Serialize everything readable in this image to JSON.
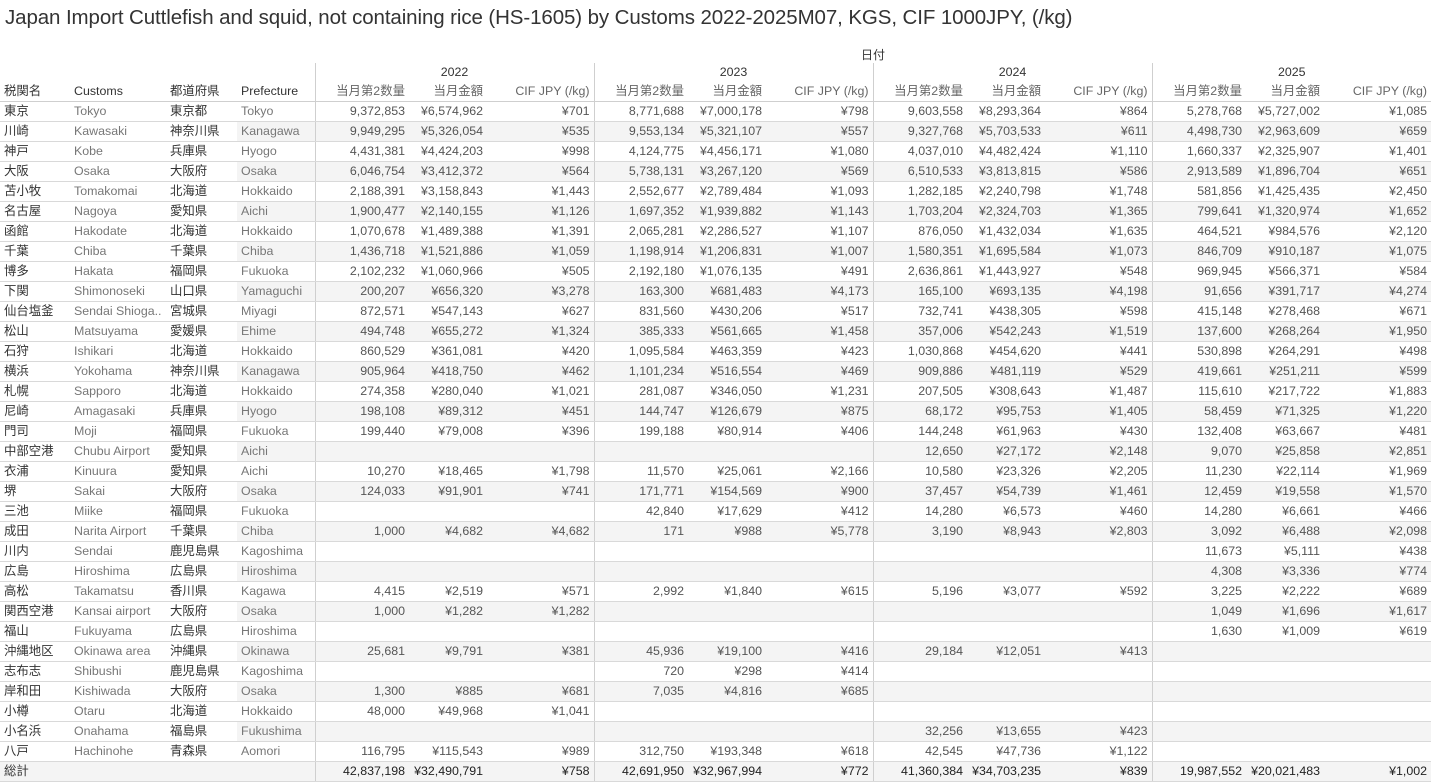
{
  "title": "Japan Import Cuttlefish and squid, not containing rice (HS-1605) by Customs 2022-2025M07, KGS, CIF 1000JPY, (/kg)",
  "date_header": "日付",
  "columns": {
    "customs_ja": "税関名",
    "customs_en": "Customs",
    "pref_ja": "都道府県",
    "pref_en": "Prefecture",
    "measures": [
      "当月第2数量",
      "当月金額",
      "CIF JPY (/kg)"
    ]
  },
  "years": [
    "2022",
    "2023",
    "2024",
    "2025"
  ],
  "rows": [
    {
      "ja": "東京",
      "en": "Tokyo",
      "pref_ja": "東京都",
      "pref_en": "Tokyo",
      "v": [
        "9,372,853",
        "¥6,574,962",
        "¥701",
        "8,771,688",
        "¥7,000,178",
        "¥798",
        "9,603,558",
        "¥8,293,364",
        "¥864",
        "5,278,768",
        "¥5,727,002",
        "¥1,085"
      ]
    },
    {
      "ja": "川崎",
      "en": "Kawasaki",
      "pref_ja": "神奈川県",
      "pref_en": "Kanagawa",
      "v": [
        "9,949,295",
        "¥5,326,054",
        "¥535",
        "9,553,134",
        "¥5,321,107",
        "¥557",
        "9,327,768",
        "¥5,703,533",
        "¥611",
        "4,498,730",
        "¥2,963,609",
        "¥659"
      ]
    },
    {
      "ja": "神戸",
      "en": "Kobe",
      "pref_ja": "兵庫県",
      "pref_en": "Hyogo",
      "v": [
        "4,431,381",
        "¥4,424,203",
        "¥998",
        "4,124,775",
        "¥4,456,171",
        "¥1,080",
        "4,037,010",
        "¥4,482,424",
        "¥1,110",
        "1,660,337",
        "¥2,325,907",
        "¥1,401"
      ]
    },
    {
      "ja": "大阪",
      "en": "Osaka",
      "pref_ja": "大阪府",
      "pref_en": "Osaka",
      "v": [
        "6,046,754",
        "¥3,412,372",
        "¥564",
        "5,738,131",
        "¥3,267,120",
        "¥569",
        "6,510,533",
        "¥3,813,815",
        "¥586",
        "2,913,589",
        "¥1,896,704",
        "¥651"
      ]
    },
    {
      "ja": "苫小牧",
      "en": "Tomakomai",
      "pref_ja": "北海道",
      "pref_en": "Hokkaido",
      "v": [
        "2,188,391",
        "¥3,158,843",
        "¥1,443",
        "2,552,677",
        "¥2,789,484",
        "¥1,093",
        "1,282,185",
        "¥2,240,798",
        "¥1,748",
        "581,856",
        "¥1,425,435",
        "¥2,450"
      ]
    },
    {
      "ja": "名古屋",
      "en": "Nagoya",
      "pref_ja": "愛知県",
      "pref_en": "Aichi",
      "v": [
        "1,900,477",
        "¥2,140,155",
        "¥1,126",
        "1,697,352",
        "¥1,939,882",
        "¥1,143",
        "1,703,204",
        "¥2,324,703",
        "¥1,365",
        "799,641",
        "¥1,320,974",
        "¥1,652"
      ]
    },
    {
      "ja": "函館",
      "en": "Hakodate",
      "pref_ja": "北海道",
      "pref_en": "Hokkaido",
      "v": [
        "1,070,678",
        "¥1,489,388",
        "¥1,391",
        "2,065,281",
        "¥2,286,527",
        "¥1,107",
        "876,050",
        "¥1,432,034",
        "¥1,635",
        "464,521",
        "¥984,576",
        "¥2,120"
      ]
    },
    {
      "ja": "千葉",
      "en": "Chiba",
      "pref_ja": "千葉県",
      "pref_en": "Chiba",
      "v": [
        "1,436,718",
        "¥1,521,886",
        "¥1,059",
        "1,198,914",
        "¥1,206,831",
        "¥1,007",
        "1,580,351",
        "¥1,695,584",
        "¥1,073",
        "846,709",
        "¥910,187",
        "¥1,075"
      ]
    },
    {
      "ja": "博多",
      "en": "Hakata",
      "pref_ja": "福岡県",
      "pref_en": "Fukuoka",
      "v": [
        "2,102,232",
        "¥1,060,966",
        "¥505",
        "2,192,180",
        "¥1,076,135",
        "¥491",
        "2,636,861",
        "¥1,443,927",
        "¥548",
        "969,945",
        "¥566,371",
        "¥584"
      ]
    },
    {
      "ja": "下関",
      "en": "Shimonoseki",
      "pref_ja": "山口県",
      "pref_en": "Yamaguchi",
      "v": [
        "200,207",
        "¥656,320",
        "¥3,278",
        "163,300",
        "¥681,483",
        "¥4,173",
        "165,100",
        "¥693,135",
        "¥4,198",
        "91,656",
        "¥391,717",
        "¥4,274"
      ]
    },
    {
      "ja": "仙台塩釜",
      "en": "Sendai Shioga..",
      "pref_ja": "宮城県",
      "pref_en": "Miyagi",
      "v": [
        "872,571",
        "¥547,143",
        "¥627",
        "831,560",
        "¥430,206",
        "¥517",
        "732,741",
        "¥438,305",
        "¥598",
        "415,148",
        "¥278,468",
        "¥671"
      ]
    },
    {
      "ja": "松山",
      "en": "Matsuyama",
      "pref_ja": "愛媛県",
      "pref_en": "Ehime",
      "v": [
        "494,748",
        "¥655,272",
        "¥1,324",
        "385,333",
        "¥561,665",
        "¥1,458",
        "357,006",
        "¥542,243",
        "¥1,519",
        "137,600",
        "¥268,264",
        "¥1,950"
      ]
    },
    {
      "ja": "石狩",
      "en": "Ishikari",
      "pref_ja": "北海道",
      "pref_en": "Hokkaido",
      "v": [
        "860,529",
        "¥361,081",
        "¥420",
        "1,095,584",
        "¥463,359",
        "¥423",
        "1,030,868",
        "¥454,620",
        "¥441",
        "530,898",
        "¥264,291",
        "¥498"
      ]
    },
    {
      "ja": "横浜",
      "en": "Yokohama",
      "pref_ja": "神奈川県",
      "pref_en": "Kanagawa",
      "v": [
        "905,964",
        "¥418,750",
        "¥462",
        "1,101,234",
        "¥516,554",
        "¥469",
        "909,886",
        "¥481,119",
        "¥529",
        "419,661",
        "¥251,211",
        "¥599"
      ]
    },
    {
      "ja": "札幌",
      "en": "Sapporo",
      "pref_ja": "北海道",
      "pref_en": "Hokkaido",
      "v": [
        "274,358",
        "¥280,040",
        "¥1,021",
        "281,087",
        "¥346,050",
        "¥1,231",
        "207,505",
        "¥308,643",
        "¥1,487",
        "115,610",
        "¥217,722",
        "¥1,883"
      ]
    },
    {
      "ja": "尼崎",
      "en": "Amagasaki",
      "pref_ja": "兵庫県",
      "pref_en": "Hyogo",
      "v": [
        "198,108",
        "¥89,312",
        "¥451",
        "144,747",
        "¥126,679",
        "¥875",
        "68,172",
        "¥95,753",
        "¥1,405",
        "58,459",
        "¥71,325",
        "¥1,220"
      ]
    },
    {
      "ja": "門司",
      "en": "Moji",
      "pref_ja": "福岡県",
      "pref_en": "Fukuoka",
      "v": [
        "199,440",
        "¥79,008",
        "¥396",
        "199,188",
        "¥80,914",
        "¥406",
        "144,248",
        "¥61,963",
        "¥430",
        "132,408",
        "¥63,667",
        "¥481"
      ]
    },
    {
      "ja": "中部空港",
      "en": "Chubu Airport",
      "pref_ja": "愛知県",
      "pref_en": "Aichi",
      "v": [
        "",
        "",
        "",
        "",
        "",
        "",
        "12,650",
        "¥27,172",
        "¥2,148",
        "9,070",
        "¥25,858",
        "¥2,851"
      ]
    },
    {
      "ja": "衣浦",
      "en": "Kinuura",
      "pref_ja": "愛知県",
      "pref_en": "Aichi",
      "v": [
        "10,270",
        "¥18,465",
        "¥1,798",
        "11,570",
        "¥25,061",
        "¥2,166",
        "10,580",
        "¥23,326",
        "¥2,205",
        "11,230",
        "¥22,114",
        "¥1,969"
      ]
    },
    {
      "ja": "堺",
      "en": "Sakai",
      "pref_ja": "大阪府",
      "pref_en": "Osaka",
      "v": [
        "124,033",
        "¥91,901",
        "¥741",
        "171,771",
        "¥154,569",
        "¥900",
        "37,457",
        "¥54,739",
        "¥1,461",
        "12,459",
        "¥19,558",
        "¥1,570"
      ]
    },
    {
      "ja": "三池",
      "en": "Miike",
      "pref_ja": "福岡県",
      "pref_en": "Fukuoka",
      "v": [
        "",
        "",
        "",
        "42,840",
        "¥17,629",
        "¥412",
        "14,280",
        "¥6,573",
        "¥460",
        "14,280",
        "¥6,661",
        "¥466"
      ]
    },
    {
      "ja": "成田",
      "en": "Narita Airport",
      "pref_ja": "千葉県",
      "pref_en": "Chiba",
      "v": [
        "1,000",
        "¥4,682",
        "¥4,682",
        "171",
        "¥988",
        "¥5,778",
        "3,190",
        "¥8,943",
        "¥2,803",
        "3,092",
        "¥6,488",
        "¥2,098"
      ]
    },
    {
      "ja": "川内",
      "en": "Sendai",
      "pref_ja": "鹿児島県",
      "pref_en": "Kagoshima",
      "v": [
        "",
        "",
        "",
        "",
        "",
        "",
        "",
        "",
        "",
        "11,673",
        "¥5,111",
        "¥438"
      ]
    },
    {
      "ja": "広島",
      "en": "Hiroshima",
      "pref_ja": "広島県",
      "pref_en": "Hiroshima",
      "v": [
        "",
        "",
        "",
        "",
        "",
        "",
        "",
        "",
        "",
        "4,308",
        "¥3,336",
        "¥774"
      ]
    },
    {
      "ja": "高松",
      "en": "Takamatsu",
      "pref_ja": "香川県",
      "pref_en": "Kagawa",
      "v": [
        "4,415",
        "¥2,519",
        "¥571",
        "2,992",
        "¥1,840",
        "¥615",
        "5,196",
        "¥3,077",
        "¥592",
        "3,225",
        "¥2,222",
        "¥689"
      ]
    },
    {
      "ja": "関西空港",
      "en": "Kansai airport",
      "pref_ja": "大阪府",
      "pref_en": "Osaka",
      "v": [
        "1,000",
        "¥1,282",
        "¥1,282",
        "",
        "",
        "",
        "",
        "",
        "",
        "1,049",
        "¥1,696",
        "¥1,617"
      ]
    },
    {
      "ja": "福山",
      "en": "Fukuyama",
      "pref_ja": "広島県",
      "pref_en": "Hiroshima",
      "v": [
        "",
        "",
        "",
        "",
        "",
        "",
        "",
        "",
        "",
        "1,630",
        "¥1,009",
        "¥619"
      ]
    },
    {
      "ja": "沖縄地区",
      "en": "Okinawa area",
      "pref_ja": "沖縄県",
      "pref_en": "Okinawa",
      "v": [
        "25,681",
        "¥9,791",
        "¥381",
        "45,936",
        "¥19,100",
        "¥416",
        "29,184",
        "¥12,051",
        "¥413",
        "",
        "",
        ""
      ]
    },
    {
      "ja": "志布志",
      "en": "Shibushi",
      "pref_ja": "鹿児島県",
      "pref_en": "Kagoshima",
      "v": [
        "",
        "",
        "",
        "720",
        "¥298",
        "¥414",
        "",
        "",
        "",
        "",
        "",
        ""
      ]
    },
    {
      "ja": "岸和田",
      "en": "Kishiwada",
      "pref_ja": "大阪府",
      "pref_en": "Osaka",
      "v": [
        "1,300",
        "¥885",
        "¥681",
        "7,035",
        "¥4,816",
        "¥685",
        "",
        "",
        "",
        "",
        "",
        ""
      ]
    },
    {
      "ja": "小樽",
      "en": "Otaru",
      "pref_ja": "北海道",
      "pref_en": "Hokkaido",
      "v": [
        "48,000",
        "¥49,968",
        "¥1,041",
        "",
        "",
        "",
        "",
        "",
        "",
        "",
        "",
        ""
      ]
    },
    {
      "ja": "小名浜",
      "en": "Onahama",
      "pref_ja": "福島県",
      "pref_en": "Fukushima",
      "v": [
        "",
        "",
        "",
        "",
        "",
        "",
        "32,256",
        "¥13,655",
        "¥423",
        "",
        "",
        ""
      ]
    },
    {
      "ja": "八戸",
      "en": "Hachinohe",
      "pref_ja": "青森県",
      "pref_en": "Aomori",
      "v": [
        "116,795",
        "¥115,543",
        "¥989",
        "312,750",
        "¥193,348",
        "¥618",
        "42,545",
        "¥47,736",
        "¥1,122",
        "",
        "",
        ""
      ]
    }
  ],
  "total": {
    "label": "総計",
    "v": [
      "42,837,198",
      "¥32,490,791",
      "¥758",
      "42,691,950",
      "¥32,967,994",
      "¥772",
      "41,360,384",
      "¥34,703,235",
      "¥839",
      "19,987,552",
      "¥20,021,483",
      "¥1,002"
    ]
  }
}
